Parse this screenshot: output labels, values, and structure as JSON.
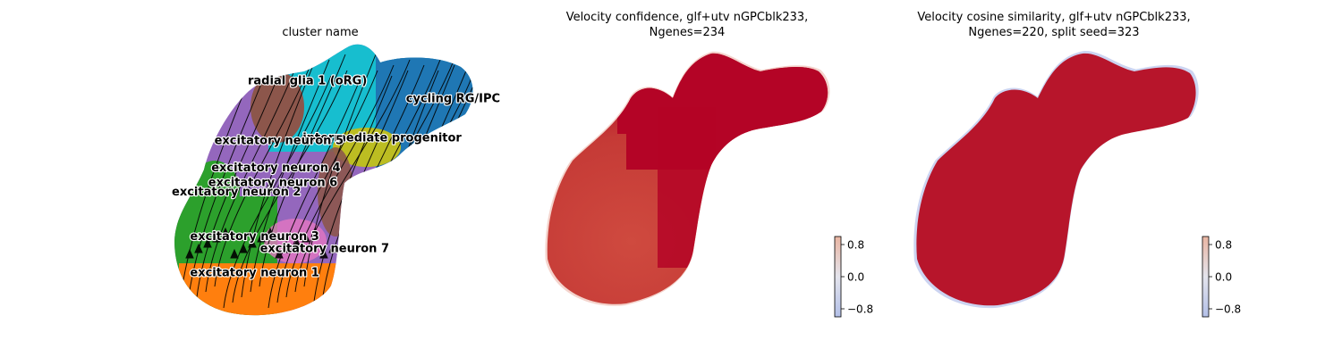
{
  "chart_data": [
    {
      "type": "scatter",
      "title": "cluster name",
      "clusters": [
        {
          "name": "radial glia 1 (oRG)",
          "color": "#8c564b",
          "x": 3.0,
          "y": 8.2
        },
        {
          "name": "cycling RG/IPC",
          "color": "#1f77b4",
          "x": 8.2,
          "y": 7.6
        },
        {
          "name": "intermediate progenitor",
          "color": "#bcbd22",
          "x": 4.8,
          "y": 6.3
        },
        {
          "name": "excitatory neuron 5",
          "color": "#17becf",
          "x": 1.9,
          "y": 6.2
        },
        {
          "name": "excitatory neuron 4",
          "color": "#9467bd",
          "x": 1.8,
          "y": 5.3
        },
        {
          "name": "excitatory neuron 6",
          "color": "#e377c2",
          "x": 1.7,
          "y": 4.8
        },
        {
          "name": "excitatory neuron 2",
          "color": "#2ca02c",
          "x": 0.5,
          "y": 4.5
        },
        {
          "name": "excitatory neuron 3",
          "color": "#2ca02c",
          "x": 1.1,
          "y": 3.0
        },
        {
          "name": "excitatory neuron 7",
          "color": "#7f7f7f",
          "x": 3.4,
          "y": 2.6
        },
        {
          "name": "excitatory neuron 1",
          "color": "#ff7f0e",
          "x": 1.1,
          "y": 1.8
        }
      ],
      "overlay": "velocity streamlines"
    },
    {
      "type": "scatter",
      "title_lines": [
        "Velocity confidence, glf+utv nGPCblk233,",
        "Ngenes=234"
      ],
      "colormap": "coolwarm",
      "colorbar": {
        "ticks": [
          0.8,
          0.0,
          -0.8
        ],
        "tick_labels": [
          "0.8",
          "0.0",
          "−0.8"
        ],
        "range": [
          -1,
          1
        ]
      }
    },
    {
      "type": "scatter",
      "title_lines": [
        "Velocity cosine similarity, glf+utv nGPCblk233,",
        "Ngenes=220, split seed=323"
      ],
      "colormap": "coolwarm",
      "colorbar": {
        "ticks": [
          0.8,
          0.0,
          -0.8
        ],
        "tick_labels": [
          "0.8",
          "0.0",
          "−0.8"
        ],
        "range": [
          -1,
          1
        ]
      }
    }
  ]
}
